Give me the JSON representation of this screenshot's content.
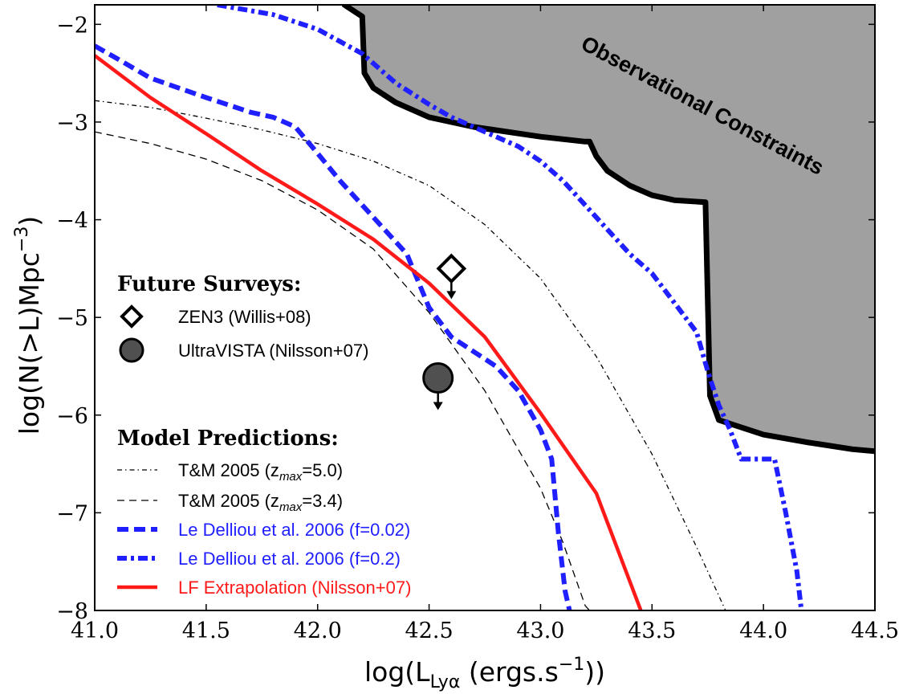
{
  "chart_data": {
    "type": "line",
    "xlabel": "log(L",
    "xlabel_sub": "Lyα",
    "xlabel_tail": " (ergs.s",
    "xlabel_sup": "−1",
    "xlabel_end": "))",
    "ylabel": "log(N(>L)Mpc",
    "ylabel_sup": "−3",
    "ylabel_end": ")",
    "xlim": [
      41.0,
      44.5
    ],
    "ylim": [
      -8.0,
      -1.8
    ],
    "xticks": [
      41.0,
      41.5,
      42.0,
      42.5,
      43.0,
      43.5,
      44.0,
      44.5
    ],
    "xtick_labels": [
      "41.0",
      "41.5",
      "42.0",
      "42.5",
      "43.0",
      "43.5",
      "44.0",
      "44.5"
    ],
    "yticks": [
      -2,
      -3,
      -4,
      -5,
      -6,
      -7,
      -8
    ],
    "ytick_labels": [
      "−2",
      "−3",
      "−4",
      "−5",
      "−6",
      "−7",
      "−8"
    ],
    "grid": false,
    "annotation": "Observational Constraints",
    "observational_constraints": [
      [
        42.12,
        -1.8
      ],
      [
        42.2,
        -1.92
      ],
      [
        42.21,
        -2.5
      ],
      [
        42.25,
        -2.65
      ],
      [
        42.35,
        -2.8
      ],
      [
        42.5,
        -2.95
      ],
      [
        42.7,
        -3.05
      ],
      [
        43.0,
        -3.15
      ],
      [
        43.2,
        -3.2
      ],
      [
        43.22,
        -3.2
      ],
      [
        43.25,
        -3.35
      ],
      [
        43.3,
        -3.5
      ],
      [
        43.4,
        -3.65
      ],
      [
        43.5,
        -3.75
      ],
      [
        43.6,
        -3.8
      ],
      [
        43.74,
        -3.82
      ],
      [
        43.76,
        -5.8
      ],
      [
        43.8,
        -6.05
      ],
      [
        44.0,
        -6.2
      ],
      [
        44.2,
        -6.28
      ],
      [
        44.4,
        -6.35
      ],
      [
        44.5,
        -6.37
      ]
    ],
    "legend": {
      "future_title": "Future Surveys:",
      "model_title": "Model Predictions:",
      "zen3": "ZEN3 (Willis+08)",
      "ultravista": "UltraVISTA (Nilsson+07)",
      "tm50_prefix": "T&M 2005 (z",
      "tm50_sub": "max",
      "tm50_suffix": "=5.0)",
      "tm34_prefix": "T&M 2005 (z",
      "tm34_sub": "max",
      "tm34_suffix": "=3.4)",
      "ld002": "Le Delliou et al. 2006 (f=0.02)",
      "ld02": "Le Delliou et al. 2006 (f=0.2)",
      "lf": "LF Extrapolation (Nilsson+07)"
    },
    "series": [
      {
        "name": "T&M 2005 (zmax=5.0)",
        "style": "dashdot",
        "color": "#000000",
        "points": [
          [
            41.0,
            -2.78
          ],
          [
            41.25,
            -2.85
          ],
          [
            41.5,
            -2.96
          ],
          [
            41.75,
            -3.08
          ],
          [
            42.0,
            -3.22
          ],
          [
            42.25,
            -3.4
          ],
          [
            42.5,
            -3.65
          ],
          [
            42.75,
            -4.05
          ],
          [
            43.0,
            -4.6
          ],
          [
            43.25,
            -5.4
          ],
          [
            43.5,
            -6.4
          ],
          [
            43.7,
            -7.35
          ],
          [
            43.83,
            -8.0
          ]
        ]
      },
      {
        "name": "T&M 2005 (zmax=3.4)",
        "style": "dashed",
        "color": "#000000",
        "points": [
          [
            41.0,
            -3.1
          ],
          [
            41.25,
            -3.22
          ],
          [
            41.5,
            -3.38
          ],
          [
            41.75,
            -3.6
          ],
          [
            42.0,
            -3.9
          ],
          [
            42.25,
            -4.3
          ],
          [
            42.5,
            -4.95
          ],
          [
            42.75,
            -5.75
          ],
          [
            43.0,
            -6.75
          ],
          [
            43.1,
            -7.3
          ],
          [
            43.2,
            -7.95
          ],
          [
            43.22,
            -8.0
          ]
        ]
      },
      {
        "name": "Le Delliou et al. 2006 (f=0.02)",
        "style": "thickdash",
        "color": "#1f1fff",
        "points": [
          [
            41.0,
            -2.22
          ],
          [
            41.1,
            -2.35
          ],
          [
            41.25,
            -2.55
          ],
          [
            41.5,
            -2.75
          ],
          [
            41.7,
            -2.9
          ],
          [
            41.8,
            -2.95
          ],
          [
            41.9,
            -3.05
          ],
          [
            42.0,
            -3.32
          ],
          [
            42.1,
            -3.6
          ],
          [
            42.2,
            -3.85
          ],
          [
            42.3,
            -4.1
          ],
          [
            42.4,
            -4.35
          ],
          [
            42.5,
            -4.9
          ],
          [
            42.6,
            -5.2
          ],
          [
            42.7,
            -5.35
          ],
          [
            42.8,
            -5.5
          ],
          [
            42.9,
            -5.75
          ],
          [
            43.0,
            -6.15
          ],
          [
            43.05,
            -6.45
          ],
          [
            43.08,
            -7.2
          ],
          [
            43.11,
            -7.8
          ],
          [
            43.13,
            -8.0
          ]
        ]
      },
      {
        "name": "Le Delliou et al. 2006 (f=0.2)",
        "style": "dashdotthick",
        "color": "#1f1fff",
        "points": [
          [
            41.55,
            -1.8
          ],
          [
            41.8,
            -1.9
          ],
          [
            42.0,
            -2.05
          ],
          [
            42.2,
            -2.3
          ],
          [
            42.35,
            -2.6
          ],
          [
            42.5,
            -2.82
          ],
          [
            42.6,
            -2.95
          ],
          [
            42.7,
            -3.05
          ],
          [
            42.8,
            -3.15
          ],
          [
            42.9,
            -3.25
          ],
          [
            43.0,
            -3.4
          ],
          [
            43.1,
            -3.6
          ],
          [
            43.2,
            -3.85
          ],
          [
            43.3,
            -4.1
          ],
          [
            43.4,
            -4.35
          ],
          [
            43.5,
            -4.55
          ],
          [
            43.6,
            -4.85
          ],
          [
            43.65,
            -5.0
          ],
          [
            43.7,
            -5.15
          ],
          [
            43.75,
            -5.55
          ],
          [
            43.8,
            -5.9
          ],
          [
            43.85,
            -6.15
          ],
          [
            43.9,
            -6.45
          ],
          [
            44.05,
            -6.45
          ],
          [
            44.1,
            -7.0
          ],
          [
            44.15,
            -7.6
          ],
          [
            44.17,
            -8.0
          ]
        ]
      },
      {
        "name": "LF Extrapolation (Nilsson+07)",
        "style": "solid",
        "color": "#ff1a1a",
        "points": [
          [
            41.0,
            -2.32
          ],
          [
            41.25,
            -2.75
          ],
          [
            41.5,
            -3.12
          ],
          [
            41.75,
            -3.5
          ],
          [
            42.0,
            -3.84
          ],
          [
            42.25,
            -4.2
          ],
          [
            42.5,
            -4.65
          ],
          [
            42.75,
            -5.2
          ],
          [
            43.0,
            -5.98
          ],
          [
            43.25,
            -6.8
          ],
          [
            43.45,
            -8.0
          ]
        ]
      }
    ],
    "markers": [
      {
        "name": "ZEN3 (Willis+08)",
        "x": 42.6,
        "y": -4.5,
        "shape": "diamond",
        "fill": "#ffffff",
        "upper_limit": true
      },
      {
        "name": "UltraVISTA (Nilsson+07)",
        "x": 42.54,
        "y": -5.62,
        "shape": "circle",
        "fill": "#505050",
        "upper_limit": true
      }
    ]
  }
}
